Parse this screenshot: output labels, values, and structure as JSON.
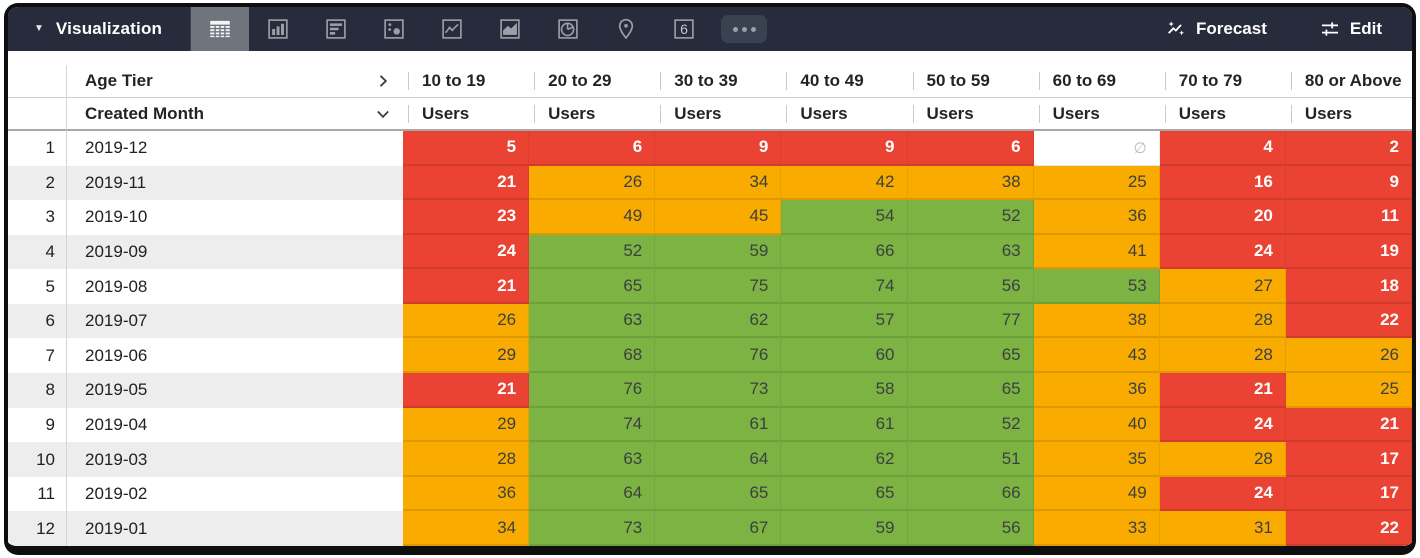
{
  "toolbar": {
    "title": "Visualization",
    "chart_type_icons": [
      {
        "name": "table",
        "selected": true
      },
      {
        "name": "bar-chart",
        "selected": false
      },
      {
        "name": "bar-horizontal",
        "selected": false
      },
      {
        "name": "scatter",
        "selected": false
      },
      {
        "name": "line-chart",
        "selected": false
      },
      {
        "name": "area-chart",
        "selected": false
      },
      {
        "name": "pie-chart",
        "selected": false
      },
      {
        "name": "map-pin",
        "selected": false
      },
      {
        "name": "single-value",
        "selected": false
      },
      {
        "name": "more",
        "selected": false
      }
    ],
    "single_value_glyph": "6",
    "forecast_label": "Forecast",
    "edit_label": "Edit"
  },
  "table": {
    "pivot_header": {
      "label": "Age Tier",
      "icon": "chevron-right"
    },
    "row_header": {
      "label": "Created Month",
      "icon": "chevron-down"
    },
    "measure_label": "Users",
    "columns": [
      "10 to 19",
      "20 to 29",
      "30 to 39",
      "40 to 49",
      "50 to 59",
      "60 to 69",
      "70 to 79",
      "80 or Above"
    ],
    "null_symbol": "∅",
    "rows": [
      {
        "n": 1,
        "month": "2019-12",
        "values": [
          5,
          6,
          9,
          9,
          6,
          null,
          4,
          2
        ]
      },
      {
        "n": 2,
        "month": "2019-11",
        "values": [
          21,
          26,
          34,
          42,
          38,
          25,
          16,
          9
        ]
      },
      {
        "n": 3,
        "month": "2019-10",
        "values": [
          23,
          49,
          45,
          54,
          52,
          36,
          20,
          11
        ]
      },
      {
        "n": 4,
        "month": "2019-09",
        "values": [
          24,
          52,
          59,
          66,
          63,
          41,
          24,
          19
        ]
      },
      {
        "n": 5,
        "month": "2019-08",
        "values": [
          21,
          65,
          75,
          74,
          56,
          53,
          27,
          18
        ]
      },
      {
        "n": 6,
        "month": "2019-07",
        "values": [
          26,
          63,
          62,
          57,
          77,
          38,
          28,
          22
        ]
      },
      {
        "n": 7,
        "month": "2019-06",
        "values": [
          29,
          68,
          76,
          60,
          65,
          43,
          28,
          26
        ]
      },
      {
        "n": 8,
        "month": "2019-05",
        "values": [
          21,
          76,
          73,
          58,
          65,
          36,
          21,
          25
        ]
      },
      {
        "n": 9,
        "month": "2019-04",
        "values": [
          29,
          74,
          61,
          61,
          52,
          40,
          24,
          21
        ]
      },
      {
        "n": 10,
        "month": "2019-03",
        "values": [
          28,
          63,
          64,
          62,
          51,
          35,
          28,
          17
        ]
      },
      {
        "n": 11,
        "month": "2019-02",
        "values": [
          36,
          64,
          65,
          65,
          66,
          49,
          24,
          17
        ]
      },
      {
        "n": 12,
        "month": "2019-01",
        "values": [
          34,
          73,
          67,
          59,
          56,
          33,
          31,
          22
        ]
      }
    ],
    "color_thresholds": {
      "red_below": 25,
      "green_at_or_above": 50
    }
  },
  "colors": {
    "red": "#ea4334",
    "orange": "#f9ab00",
    "green": "#7cb342",
    "toolbar_bg": "#262c3b",
    "selected_icon_bg": "#6e757d",
    "icon_gray": "#9aa0a6"
  }
}
